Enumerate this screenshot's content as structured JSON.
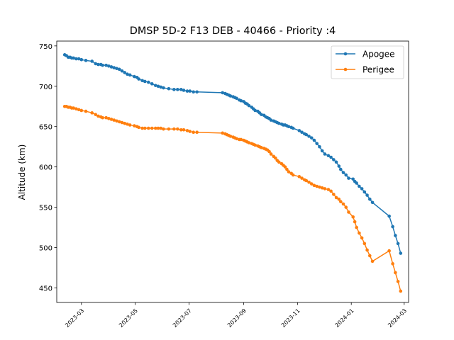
{
  "chart_data": {
    "type": "line",
    "title": "DMSP 5D-2 F13 DEB - 40466 - Priority :4",
    "xlabel": "",
    "ylabel": "Altitude (km)",
    "x_ticks": [
      "2023-03",
      "2023-05",
      "2023-07",
      "2023-09",
      "2023-11",
      "2024-01",
      "2024-03"
    ],
    "y_ticks": [
      450,
      500,
      550,
      600,
      650,
      700,
      750
    ],
    "xlim": [
      "2023-02-01",
      "2024-03-06"
    ],
    "ylim": [
      432,
      756
    ],
    "legend": "top-right",
    "grid": false,
    "series": [
      {
        "name": "Apogee",
        "color": "#1f77b4",
        "x": [
          "2023-02-10",
          "2023-02-12",
          "2023-02-14",
          "2023-02-16",
          "2023-02-18",
          "2023-02-20",
          "2023-02-23",
          "2023-02-26",
          "2023-03-01",
          "2023-03-06",
          "2023-03-13",
          "2023-03-17",
          "2023-03-20",
          "2023-03-23",
          "2023-03-25",
          "2023-03-29",
          "2023-04-01",
          "2023-04-04",
          "2023-04-07",
          "2023-04-10",
          "2023-04-13",
          "2023-04-16",
          "2023-04-19",
          "2023-04-22",
          "2023-04-25",
          "2023-04-30",
          "2023-05-03",
          "2023-05-05",
          "2023-05-09",
          "2023-05-12",
          "2023-05-16",
          "2023-05-20",
          "2023-05-24",
          "2023-05-27",
          "2023-05-30",
          "2023-06-02",
          "2023-06-08",
          "2023-06-14",
          "2023-06-18",
          "2023-06-22",
          "2023-06-25",
          "2023-06-29",
          "2023-07-02",
          "2023-07-06",
          "2023-07-10",
          "2023-08-08",
          "2023-08-11",
          "2023-08-13",
          "2023-08-15",
          "2023-08-17",
          "2023-08-20",
          "2023-08-22",
          "2023-08-24",
          "2023-08-27",
          "2023-08-29",
          "2023-09-01",
          "2023-09-03",
          "2023-09-05",
          "2023-09-07",
          "2023-09-10",
          "2023-09-12",
          "2023-09-14",
          "2023-09-17",
          "2023-09-19",
          "2023-09-21",
          "2023-09-24",
          "2023-09-26",
          "2023-09-28",
          "2023-09-30",
          "2023-10-02",
          "2023-10-05",
          "2023-10-07",
          "2023-10-09",
          "2023-10-11",
          "2023-10-14",
          "2023-10-16",
          "2023-10-18",
          "2023-10-20",
          "2023-10-22",
          "2023-10-25",
          "2023-10-27",
          "2023-11-03",
          "2023-11-06",
          "2023-11-09",
          "2023-11-11",
          "2023-11-14",
          "2023-11-17",
          "2023-11-20",
          "2023-11-23",
          "2023-11-26",
          "2023-11-29",
          "2023-12-02",
          "2023-12-06",
          "2023-12-09",
          "2023-12-12",
          "2023-12-15",
          "2023-12-18",
          "2023-12-20",
          "2023-12-23",
          "2023-12-26",
          "2023-12-29",
          "2024-01-03",
          "2024-01-05",
          "2024-01-07",
          "2024-01-10",
          "2024-01-13",
          "2024-01-16",
          "2024-01-19",
          "2024-01-22",
          "2024-01-25",
          "2024-02-13",
          "2024-02-17",
          "2024-02-20",
          "2024-02-23",
          "2024-02-26"
        ],
        "y": [
          739,
          738,
          736,
          736,
          735,
          735,
          734,
          734,
          733,
          732,
          731,
          728,
          727,
          727,
          726,
          726,
          725,
          724,
          723,
          722,
          721,
          719,
          717,
          715,
          714,
          712,
          711,
          709,
          707,
          706,
          705,
          703,
          701,
          700,
          699,
          698,
          697,
          696,
          696,
          696,
          695,
          694,
          694,
          693,
          693,
          692,
          691,
          690,
          689,
          688,
          687,
          686,
          685,
          683,
          682,
          681,
          679,
          678,
          676,
          674,
          672,
          670,
          669,
          667,
          665,
          664,
          662,
          661,
          660,
          658,
          657,
          656,
          655,
          654,
          653,
          652,
          652,
          651,
          650,
          649,
          648,
          645,
          643,
          641,
          640,
          638,
          636,
          633,
          629,
          625,
          620,
          616,
          614,
          612,
          609,
          606,
          601,
          597,
          593,
          590,
          586,
          585,
          582,
          580,
          576,
          573,
          569,
          565,
          560,
          556,
          539,
          526,
          515,
          505,
          493
        ]
      },
      {
        "name": "Perigee",
        "color": "#ff7f0e",
        "x": [
          "2023-02-10",
          "2023-02-12",
          "2023-02-14",
          "2023-02-16",
          "2023-02-18",
          "2023-02-20",
          "2023-02-23",
          "2023-02-26",
          "2023-03-01",
          "2023-03-06",
          "2023-03-13",
          "2023-03-17",
          "2023-03-20",
          "2023-03-23",
          "2023-03-25",
          "2023-03-29",
          "2023-04-01",
          "2023-04-04",
          "2023-04-07",
          "2023-04-10",
          "2023-04-13",
          "2023-04-16",
          "2023-04-19",
          "2023-04-22",
          "2023-04-25",
          "2023-04-30",
          "2023-05-03",
          "2023-05-05",
          "2023-05-09",
          "2023-05-12",
          "2023-05-16",
          "2023-05-20",
          "2023-05-24",
          "2023-05-27",
          "2023-05-30",
          "2023-06-02",
          "2023-06-08",
          "2023-06-14",
          "2023-06-18",
          "2023-06-22",
          "2023-06-25",
          "2023-06-29",
          "2023-07-02",
          "2023-07-06",
          "2023-07-10",
          "2023-08-08",
          "2023-08-11",
          "2023-08-13",
          "2023-08-15",
          "2023-08-17",
          "2023-08-20",
          "2023-08-22",
          "2023-08-24",
          "2023-08-27",
          "2023-08-29",
          "2023-09-01",
          "2023-09-03",
          "2023-09-05",
          "2023-09-07",
          "2023-09-10",
          "2023-09-12",
          "2023-09-14",
          "2023-09-17",
          "2023-09-19",
          "2023-09-21",
          "2023-09-24",
          "2023-09-26",
          "2023-09-28",
          "2023-09-30",
          "2023-10-02",
          "2023-10-05",
          "2023-10-07",
          "2023-10-09",
          "2023-10-11",
          "2023-10-14",
          "2023-10-16",
          "2023-10-18",
          "2023-10-20",
          "2023-10-22",
          "2023-10-25",
          "2023-10-27",
          "2023-11-03",
          "2023-11-06",
          "2023-11-09",
          "2023-11-11",
          "2023-11-14",
          "2023-11-17",
          "2023-11-20",
          "2023-11-23",
          "2023-11-26",
          "2023-11-29",
          "2023-12-02",
          "2023-12-06",
          "2023-12-09",
          "2023-12-12",
          "2023-12-15",
          "2023-12-18",
          "2023-12-20",
          "2023-12-23",
          "2023-12-26",
          "2023-12-29",
          "2024-01-03",
          "2024-01-05",
          "2024-01-07",
          "2024-01-10",
          "2024-01-13",
          "2024-01-16",
          "2024-01-19",
          "2024-01-22",
          "2024-01-25",
          "2024-02-13",
          "2024-02-17",
          "2024-02-20",
          "2024-02-23",
          "2024-02-26"
        ],
        "y": [
          675,
          675,
          674,
          674,
          673,
          673,
          672,
          671,
          670,
          669,
          667,
          665,
          663,
          662,
          661,
          661,
          660,
          659,
          658,
          657,
          656,
          655,
          654,
          653,
          652,
          651,
          650,
          649,
          648,
          648,
          648,
          648,
          648,
          648,
          648,
          647,
          647,
          647,
          647,
          646,
          646,
          645,
          644,
          643,
          643,
          642,
          641,
          640,
          639,
          638,
          637,
          636,
          635,
          634,
          634,
          633,
          632,
          631,
          630,
          629,
          628,
          627,
          626,
          625,
          624,
          623,
          622,
          621,
          619,
          616,
          613,
          611,
          608,
          606,
          604,
          602,
          600,
          597,
          594,
          592,
          590,
          588,
          586,
          584,
          583,
          581,
          579,
          577,
          576,
          575,
          574,
          573,
          572,
          570,
          566,
          562,
          560,
          557,
          554,
          550,
          544,
          538,
          532,
          525,
          518,
          512,
          505,
          497,
          490,
          483,
          496,
          480,
          469,
          458,
          446
        ]
      }
    ]
  }
}
